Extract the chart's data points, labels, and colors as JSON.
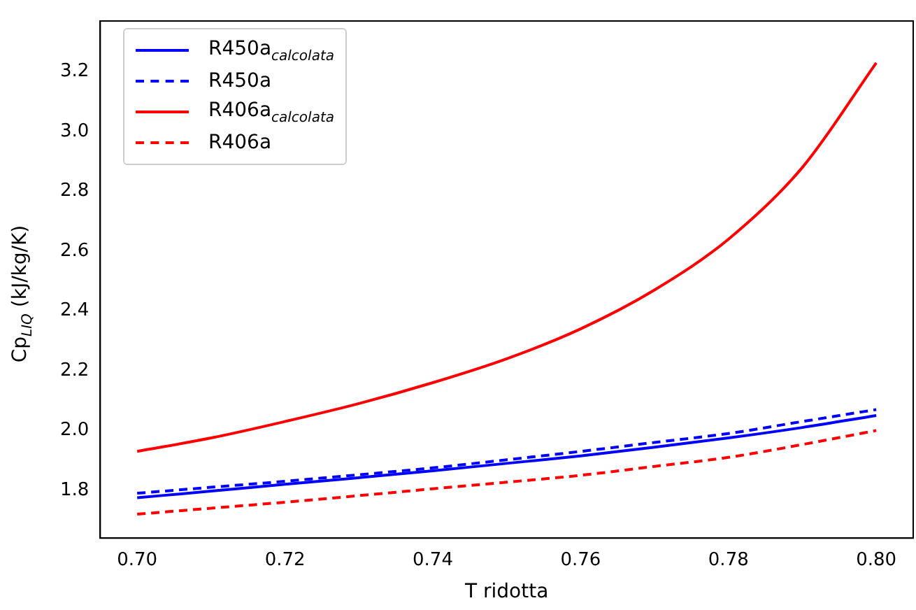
{
  "chart_data": {
    "type": "line",
    "xlabel": "T ridotta",
    "ylabel": "Cp$_{LIQ}$ (kJ/kg/K)",
    "x": [
      0.7,
      0.71,
      0.72,
      0.73,
      0.74,
      0.75,
      0.76,
      0.77,
      0.78,
      0.79,
      0.8
    ],
    "series": [
      {
        "name": "R450a$_{calcolata}$",
        "color": "#0000ff",
        "line_style": "solid",
        "values": [
          1.775,
          1.797,
          1.82,
          1.842,
          1.865,
          1.89,
          1.915,
          1.944,
          1.975,
          2.01,
          2.05
        ]
      },
      {
        "name": "R450a",
        "color": "#0000ff",
        "line_style": "dashed",
        "values": [
          1.79,
          1.81,
          1.83,
          1.852,
          1.875,
          1.902,
          1.93,
          1.96,
          1.99,
          2.03,
          2.07
        ]
      },
      {
        "name": "R406a$_{calcolata}$",
        "color": "#ff0000",
        "line_style": "solid",
        "values": [
          1.93,
          1.975,
          2.03,
          2.09,
          2.16,
          2.24,
          2.34,
          2.47,
          2.64,
          2.88,
          3.23
        ]
      },
      {
        "name": "R406a",
        "color": "#ff0000",
        "line_style": "dashed",
        "values": [
          1.72,
          1.74,
          1.76,
          1.782,
          1.805,
          1.827,
          1.85,
          1.88,
          1.91,
          1.953,
          2.0
        ]
      }
    ],
    "xlim": [
      0.695,
      0.805
    ],
    "xticks": [
      {
        "value": 0.7,
        "label": "0.70"
      },
      {
        "value": 0.72,
        "label": "0.72"
      },
      {
        "value": 0.74,
        "label": "0.74"
      },
      {
        "value": 0.76,
        "label": "0.76"
      },
      {
        "value": 0.78,
        "label": "0.78"
      },
      {
        "value": 0.8,
        "label": "0.80"
      }
    ],
    "ylim": [
      1.64,
      3.37
    ],
    "yticks": [
      {
        "value": 1.8,
        "label": "1.8"
      },
      {
        "value": 2.0,
        "label": "2.0"
      },
      {
        "value": 2.2,
        "label": "2.2"
      },
      {
        "value": 2.4,
        "label": "2.4"
      },
      {
        "value": 2.6,
        "label": "2.6"
      },
      {
        "value": 2.8,
        "label": "2.8"
      },
      {
        "value": 3.0,
        "label": "3.0"
      },
      {
        "value": 3.2,
        "label": "3.2"
      }
    ],
    "grid": false,
    "legend": "top left",
    "marker": "none"
  }
}
